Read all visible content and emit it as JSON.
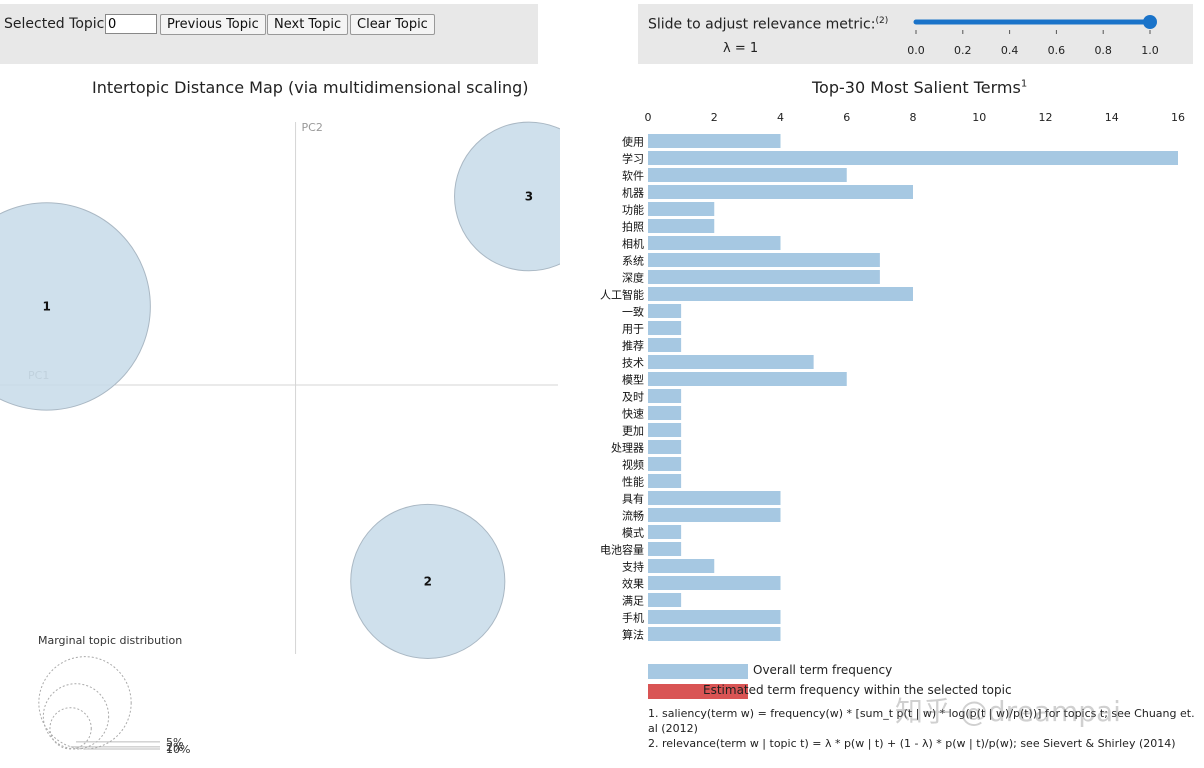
{
  "controls": {
    "selected_topic_label": "Selected Topic:",
    "selected_topic_value": "0",
    "prev_label": "Previous Topic",
    "next_label": "Next Topic",
    "clear_label": "Clear Topic",
    "slider_label": "Slide to adjust relevance metric:",
    "slider_note": "(2)",
    "lambda_text": "λ = 1",
    "slider_ticks": [
      "0.0",
      "0.2",
      "0.4",
      "0.6",
      "0.8",
      "1.0"
    ],
    "slider_value": 1.0
  },
  "left_title": "Intertopic Distance Map (via multidimensional scaling)",
  "right_title": "Top-30 Most Salient Terms",
  "right_title_note": "1",
  "axes": {
    "pc1": "PC1",
    "pc2": "PC2"
  },
  "marginal": {
    "title": "Marginal topic distribution",
    "labels": [
      "2%",
      "5%",
      "10%"
    ]
  },
  "legend": {
    "overall": "Overall term frequency",
    "estimated": "Estimated term frequency within the selected topic",
    "overall_color": "#a6c8e2",
    "estimated_color": "#d95454"
  },
  "notes": {
    "n1": "1. saliency(term w) = frequency(w) * [sum_t p(t | w) * log(p(t | w)/p(t))] for topics t; see Chuang et. al (2012)",
    "n2": "2. relevance(term w | topic t) = λ * p(w | t) + (1 - λ) * p(w | t)/p(w); see Sievert & Shirley (2014)"
  },
  "watermark": "知乎 @dreampai",
  "chart_data": [
    {
      "type": "scatter",
      "name": "intertopic",
      "topics": [
        {
          "label": "1",
          "x": -0.32,
          "y": 0.1,
          "marginal_pct": 10.5
        },
        {
          "label": "2",
          "x": 0.17,
          "y": -0.25,
          "marginal_pct": 5.8
        },
        {
          "label": "3",
          "x": 0.3,
          "y": 0.24,
          "marginal_pct": 5.4
        }
      ],
      "xlabel": "PC1",
      "ylabel": "PC2",
      "xlim": [
        -0.38,
        0.34
      ],
      "ylim": [
        -0.35,
        0.35
      ],
      "bubble_color": "#c7dbe9"
    },
    {
      "type": "bar",
      "orientation": "horizontal",
      "categories": [
        "使用",
        "学习",
        "软件",
        "机器",
        "功能",
        "拍照",
        "相机",
        "系统",
        "深度",
        "人工智能",
        "一致",
        "用于",
        "推荐",
        "技术",
        "模型",
        "及时",
        "快速",
        "更加",
        "处理器",
        "视频",
        "性能",
        "具有",
        "流畅",
        "模式",
        "电池容量",
        "支持",
        "效果",
        "满足",
        "手机",
        "算法"
      ],
      "series": [
        {
          "values": [
            4,
            16,
            6,
            8,
            2,
            2,
            4,
            7,
            7,
            8,
            1,
            1,
            1,
            5,
            6,
            1,
            1,
            1,
            1,
            1,
            1,
            4,
            4,
            1,
            1,
            2,
            4,
            1,
            4,
            4
          ]
        }
      ],
      "xticks": [
        0,
        2,
        4,
        6,
        8,
        10,
        12,
        14,
        16
      ],
      "xlim": [
        0,
        16
      ]
    }
  ]
}
